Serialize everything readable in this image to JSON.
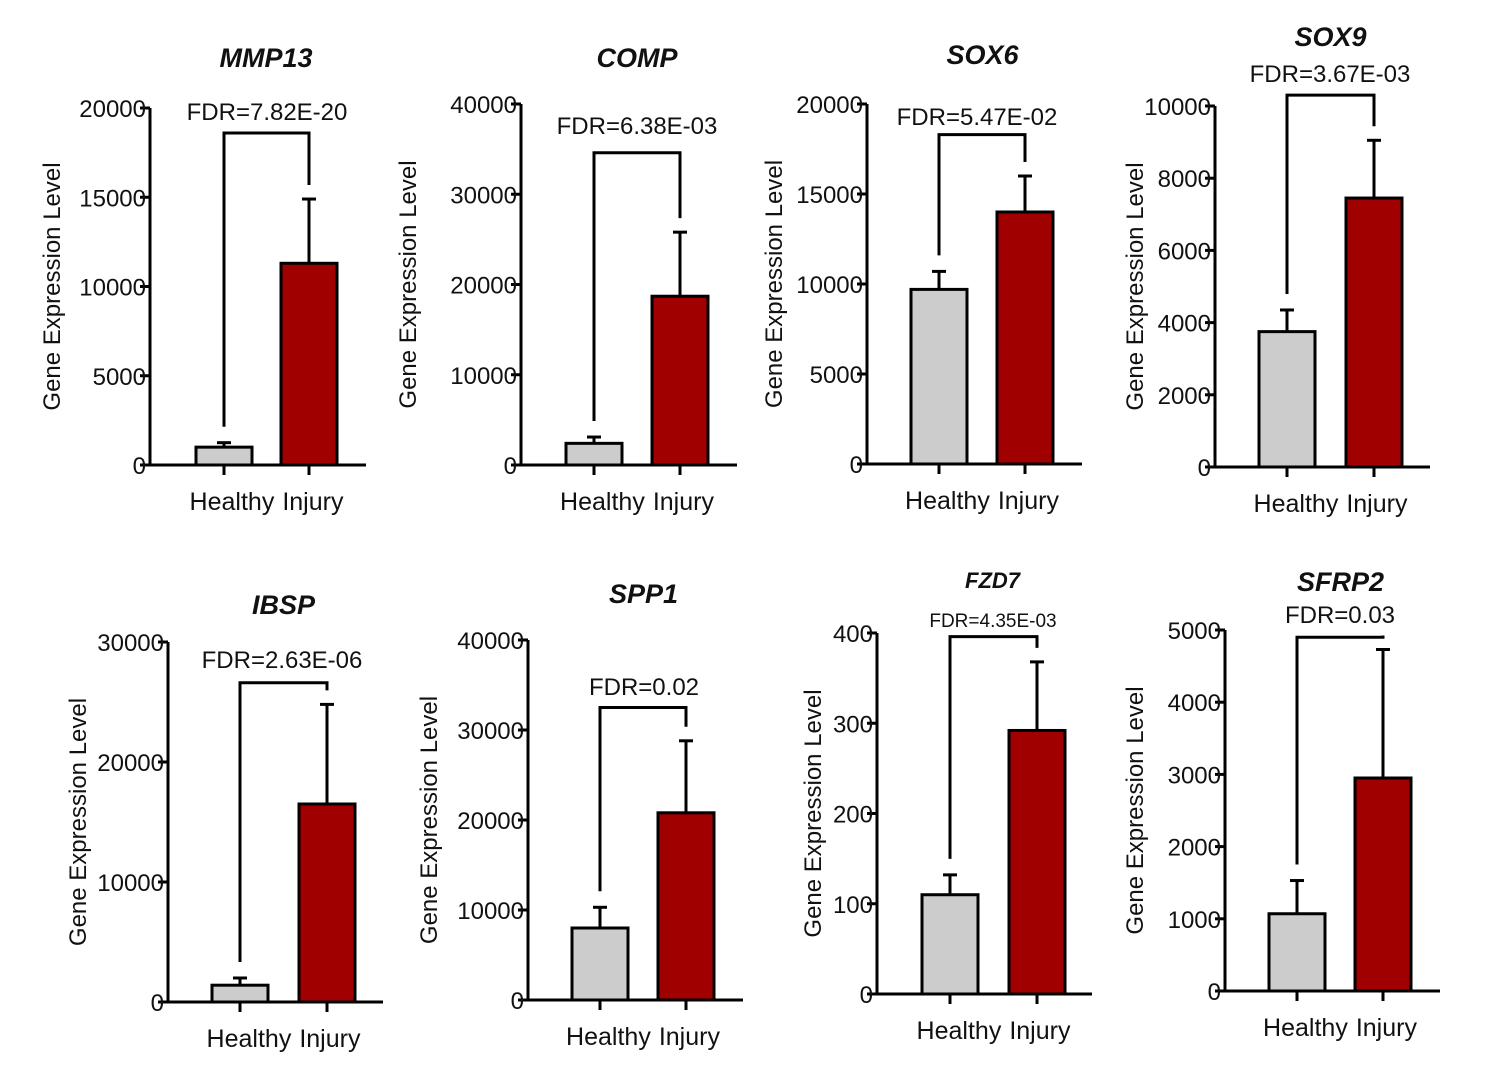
{
  "colors": {
    "healthy": "#cccccc",
    "injury": "#a00000",
    "axis": "#000000"
  },
  "chart_data": [
    {
      "type": "bar",
      "title": "MMP13",
      "categories": [
        "Healthy",
        "Injury"
      ],
      "values": [
        1000,
        11300
      ],
      "error": [
        1250,
        14900
      ],
      "ylabel": "Gene Expression Level",
      "ylim": [
        0,
        20000
      ],
      "yticks": [
        "0",
        "5000",
        "10000",
        "15000",
        "20000"
      ],
      "yticks_num": [
        0,
        5000,
        10000,
        15000,
        20000
      ],
      "annotation": "FDR=7.82E-20",
      "annotation_y": 18600
    },
    {
      "type": "bar",
      "title": "COMP",
      "categories": [
        "Healthy",
        "Injury"
      ],
      "values": [
        2400,
        18700
      ],
      "error": [
        3100,
        25800
      ],
      "ylabel": "Gene Expression Level",
      "ylim": [
        0,
        40000
      ],
      "yticks": [
        "0",
        "10000",
        "20000",
        "30000",
        "40000"
      ],
      "yticks_num": [
        0,
        10000,
        20000,
        30000,
        40000
      ],
      "annotation": "FDR=6.38E-03",
      "annotation_y": 34600
    },
    {
      "type": "bar",
      "title": "SOX6",
      "categories": [
        "Healthy",
        "Injury"
      ],
      "values": [
        9700,
        14000
      ],
      "error": [
        10700,
        16000
      ],
      "ylabel": "Gene Expression Level",
      "ylim": [
        0,
        20000
      ],
      "yticks": [
        "0",
        "5000",
        "10000",
        "15000",
        "20000"
      ],
      "yticks_num": [
        0,
        5000,
        10000,
        15000,
        20000
      ],
      "annotation": "FDR=5.47E-02",
      "annotation_y": 18300
    },
    {
      "type": "bar",
      "title": "SOX9",
      "categories": [
        "Healthy",
        "Injury"
      ],
      "values": [
        3750,
        7450
      ],
      "error": [
        4350,
        9050
      ],
      "ylabel": "Gene Expression Level",
      "ylim": [
        0,
        10000
      ],
      "yticks": [
        "0",
        "2000",
        "4000",
        "6000",
        "8000",
        "10000"
      ],
      "yticks_num": [
        0,
        2000,
        4000,
        6000,
        8000,
        10000
      ],
      "annotation": "FDR=3.67E-03",
      "annotation_y": 10300
    },
    {
      "type": "bar",
      "title": "IBSP",
      "categories": [
        "Healthy",
        "Injury"
      ],
      "values": [
        1400,
        16500
      ],
      "error": [
        2000,
        24800
      ],
      "ylabel": "Gene Expression Level",
      "ylim": [
        0,
        30000
      ],
      "yticks": [
        "0",
        "10000",
        "20000",
        "30000"
      ],
      "yticks_num": [
        0,
        10000,
        20000,
        30000
      ],
      "annotation": "FDR=2.63E-06",
      "annotation_y": 26600
    },
    {
      "type": "bar",
      "title": "SPP1",
      "categories": [
        "Healthy",
        "Injury"
      ],
      "values": [
        8000,
        20800
      ],
      "error": [
        10300,
        28800
      ],
      "ylabel": "Gene Expression Level",
      "ylim": [
        0,
        40000
      ],
      "yticks": [
        "0",
        "10000",
        "20000",
        "30000",
        "40000"
      ],
      "yticks_num": [
        0,
        10000,
        20000,
        30000,
        40000
      ],
      "annotation": "FDR=0.02",
      "annotation_y": 32500
    },
    {
      "type": "bar",
      "title": "FZD7",
      "categories": [
        "Healthy",
        "Injury"
      ],
      "values": [
        110,
        292
      ],
      "error": [
        132,
        368
      ],
      "ylabel": "Gene Expression Level",
      "ylim": [
        0,
        400
      ],
      "yticks": [
        "0",
        "100",
        "200",
        "300",
        "400"
      ],
      "yticks_num": [
        0,
        100,
        200,
        300,
        400
      ],
      "annotation": "FDR=4.35E-03",
      "annotation_y": 396
    },
    {
      "type": "bar",
      "title": "SFRP2",
      "categories": [
        "Healthy",
        "Injury"
      ],
      "values": [
        1070,
        2950
      ],
      "error": [
        1530,
        4730
      ],
      "ylabel": "Gene Expression Level",
      "ylim": [
        0,
        5000
      ],
      "yticks": [
        "0",
        "1000",
        "2000",
        "3000",
        "4000",
        "5000"
      ],
      "yticks_num": [
        0,
        1000,
        2000,
        3000,
        4000,
        5000
      ],
      "annotation": "FDR=0.03",
      "annotation_y": 4900
    }
  ]
}
